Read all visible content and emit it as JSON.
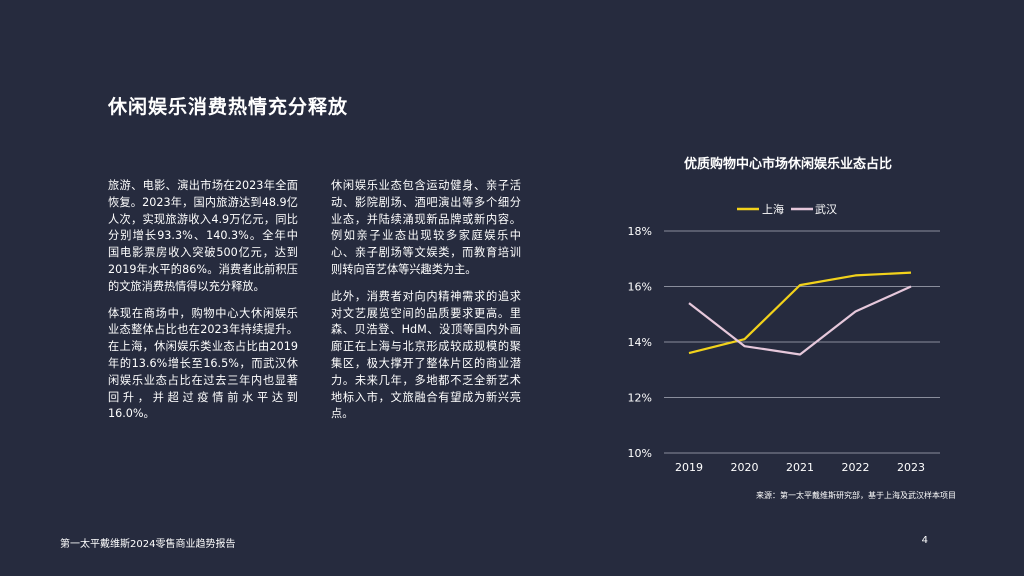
{
  "page": {
    "title": "休闲娱乐消费热情充分释放",
    "col1": [
      "旅游、电影、演出市场在2023年全面恢复。2023年，国内旅游达到48.9亿人次，实现旅游收入4.9万亿元，同比分别增长93.3%、140.3%。全年中国电影票房收入突破500亿元，达到2019年水平的86%。消费者此前积压的文旅消费热情得以充分释放。",
      "体现在商场中，购物中心大休闲娱乐业态整体占比也在2023年持续提升。在上海，休闲娱乐类业态占比由2019年的13.6%增长至16.5%，而武汉休闲娱乐业态占比在过去三年内也显著回升，并超过疫情前水平达到16.0%。"
    ],
    "col2": [
      "休闲娱乐业态包含运动健身、亲子活动、影院剧场、酒吧演出等多个细分业态，并陆续涌现新品牌或新内容。例如亲子业态出现较多家庭娱乐中心、亲子剧场等文娱类，而教育培训则转向音艺体等兴趣类为主。",
      "此外，消费者对向内精神需求的追求对文艺展览空间的品质要求更高。里森、贝浩登、HdM、没顶等国内外画廊正在上海与北京形成较成规模的聚集区，极大撑开了整体片区的商业潜力。未来几年，多地都不乏全新艺术地标入市，文旅融合有望成为新兴亮点。"
    ],
    "footer_left": "第一太平戴维斯2024零售商业趋势报告",
    "page_number": "4"
  },
  "chart_data": {
    "type": "line",
    "title": "优质购物中心市场休闲娱乐业态占比",
    "x": [
      "2019",
      "2020",
      "2021",
      "2022",
      "2023"
    ],
    "series": [
      {
        "name": "上海",
        "values": [
          13.6,
          14.1,
          16.05,
          16.4,
          16.5
        ],
        "color": "#f2d21b"
      },
      {
        "name": "武汉",
        "values": [
          15.4,
          13.85,
          13.55,
          15.1,
          16.0
        ],
        "color": "#e6c8db"
      }
    ],
    "yticks": [
      10,
      12,
      14,
      16,
      18
    ],
    "ytick_labels": [
      "10%",
      "12%",
      "14%",
      "16%",
      "18%"
    ],
    "ylim": [
      10,
      18
    ],
    "grid": true,
    "legend": "top-center",
    "source": "来源：第一太平戴维斯研究部，基于上海及武汉样本项目"
  }
}
